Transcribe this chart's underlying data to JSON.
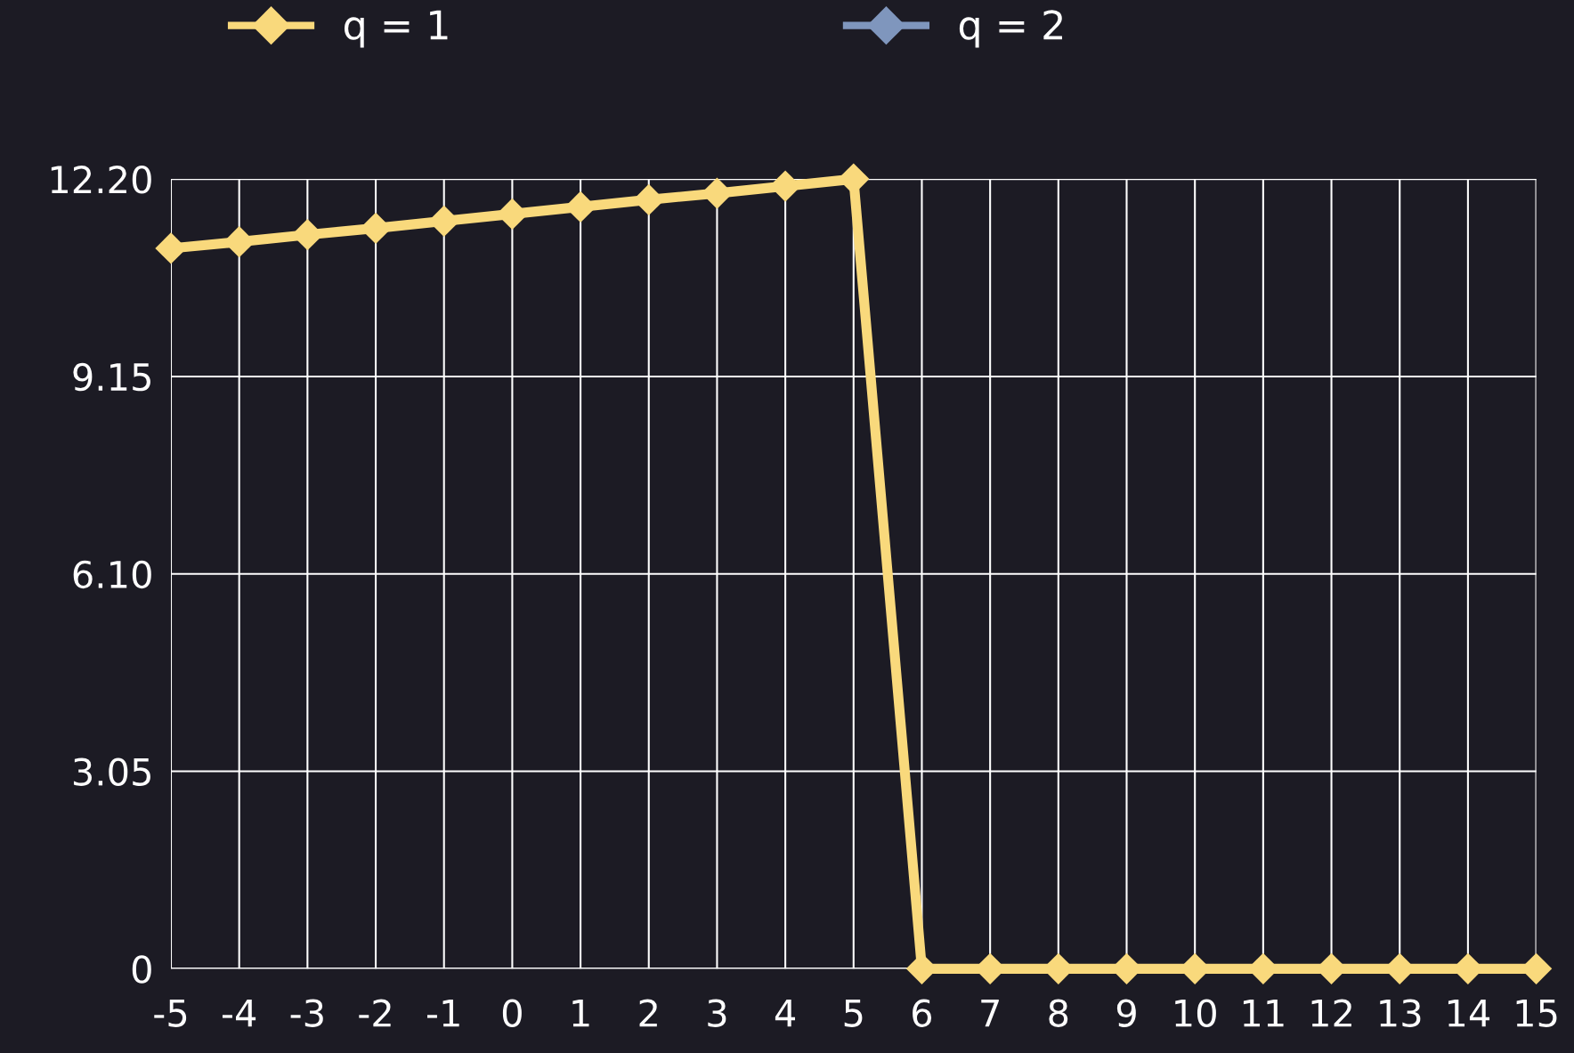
{
  "chart_data": {
    "type": "line",
    "categories": [
      "-5",
      "-4",
      "-3",
      "-2",
      "-1",
      "0",
      "1",
      "2",
      "3",
      "4",
      "5",
      "6",
      "7",
      "8",
      "9",
      "10",
      "11",
      "12",
      "13",
      "14",
      "15"
    ],
    "series": [
      {
        "name": "q = 1",
        "color": "#f9d97c",
        "values": [
          11.13,
          11.23,
          11.34,
          11.44,
          11.55,
          11.66,
          11.77,
          11.88,
          11.98,
          12.09,
          12.2,
          0,
          0,
          0,
          0,
          0,
          0,
          0,
          0,
          0,
          0
        ]
      },
      {
        "name": "q = 2",
        "color": "#7f96bd",
        "values": [
          null,
          null,
          null,
          null,
          null,
          null,
          null,
          null,
          null,
          null,
          null,
          null,
          null,
          null,
          null,
          null,
          null,
          null,
          null,
          null,
          null
        ]
      }
    ],
    "ylim": [
      0,
      12.2
    ],
    "yticks": [
      0,
      {
        "value": 3.05,
        "label": "3.05"
      },
      {
        "value": 6.1,
        "label": "6.10"
      },
      {
        "value": 9.15,
        "label": "9.15"
      },
      {
        "value": 12.2,
        "label": "12.20"
      }
    ],
    "grid": true,
    "legend": "top",
    "marker": "diamond",
    "line_style": "solid"
  }
}
